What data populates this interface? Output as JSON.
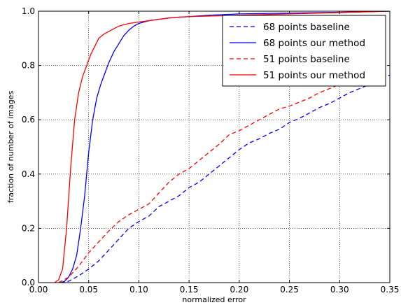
{
  "chart_data": {
    "type": "line",
    "title": "",
    "xlabel": "normalized error",
    "ylabel": "fraction of number of images",
    "xlim": [
      0.0,
      0.35
    ],
    "ylim": [
      0.0,
      1.0
    ],
    "x_ticks": [
      "0.00",
      "0.05",
      "0.10",
      "0.15",
      "0.20",
      "0.25",
      "0.30",
      "0.35"
    ],
    "y_ticks": [
      "0.0",
      "0.2",
      "0.4",
      "0.6",
      "0.8",
      "1.0"
    ],
    "grid": true,
    "legend_position": "top-right",
    "series": [
      {
        "name": "68 points baseline",
        "color": "#0000ff",
        "dash": "dashed",
        "x": [
          0.022,
          0.03,
          0.04,
          0.05,
          0.06,
          0.07,
          0.08,
          0.09,
          0.1,
          0.11,
          0.12,
          0.13,
          0.14,
          0.15,
          0.16,
          0.17,
          0.18,
          0.19,
          0.2,
          0.21,
          0.22,
          0.23,
          0.24,
          0.25,
          0.26,
          0.27,
          0.28,
          0.29,
          0.3,
          0.31,
          0.32,
          0.33,
          0.34,
          0.35
        ],
        "y": [
          0.0,
          0.005,
          0.025,
          0.05,
          0.08,
          0.12,
          0.16,
          0.2,
          0.225,
          0.245,
          0.28,
          0.3,
          0.32,
          0.35,
          0.37,
          0.4,
          0.43,
          0.46,
          0.49,
          0.515,
          0.53,
          0.55,
          0.565,
          0.59,
          0.605,
          0.625,
          0.645,
          0.66,
          0.68,
          0.7,
          0.715,
          0.73,
          0.745,
          0.765
        ]
      },
      {
        "name": "68 points our method",
        "color": "#0000ff",
        "dash": "solid",
        "x": [
          0.022,
          0.026,
          0.03,
          0.034,
          0.038,
          0.042,
          0.046,
          0.05,
          0.054,
          0.058,
          0.062,
          0.066,
          0.07,
          0.075,
          0.08,
          0.085,
          0.09,
          0.095,
          0.1,
          0.11,
          0.12,
          0.13,
          0.14,
          0.15,
          0.17,
          0.2,
          0.25,
          0.3,
          0.35
        ],
        "y": [
          0.0,
          0.005,
          0.02,
          0.05,
          0.1,
          0.2,
          0.32,
          0.48,
          0.6,
          0.68,
          0.73,
          0.77,
          0.81,
          0.85,
          0.88,
          0.91,
          0.93,
          0.945,
          0.955,
          0.965,
          0.97,
          0.975,
          0.978,
          0.98,
          0.985,
          0.99,
          0.993,
          0.996,
          1.0
        ]
      },
      {
        "name": "51 points baseline",
        "color": "#ff0000",
        "dash": "dashed",
        "x": [
          0.02,
          0.03,
          0.04,
          0.05,
          0.06,
          0.07,
          0.08,
          0.09,
          0.1,
          0.11,
          0.12,
          0.13,
          0.14,
          0.15,
          0.16,
          0.17,
          0.18,
          0.19,
          0.2,
          0.21,
          0.22,
          0.23,
          0.24,
          0.25,
          0.26,
          0.27,
          0.28,
          0.29,
          0.3,
          0.31
        ],
        "y": [
          0.0,
          0.02,
          0.06,
          0.11,
          0.15,
          0.19,
          0.225,
          0.25,
          0.27,
          0.29,
          0.33,
          0.37,
          0.4,
          0.42,
          0.45,
          0.48,
          0.51,
          0.545,
          0.56,
          0.58,
          0.6,
          0.62,
          0.64,
          0.65,
          0.665,
          0.68,
          0.7,
          0.715,
          0.73,
          0.74
        ]
      },
      {
        "name": "51 points our method",
        "color": "#ff0000",
        "dash": "solid",
        "x": [
          0.016,
          0.02,
          0.024,
          0.028,
          0.032,
          0.036,
          0.04,
          0.044,
          0.048,
          0.052,
          0.056,
          0.06,
          0.065,
          0.07,
          0.075,
          0.08,
          0.09,
          0.1,
          0.11,
          0.12,
          0.13,
          0.14,
          0.15,
          0.17,
          0.2,
          0.25,
          0.3,
          0.35
        ],
        "y": [
          0.0,
          0.01,
          0.05,
          0.2,
          0.42,
          0.6,
          0.7,
          0.76,
          0.8,
          0.84,
          0.87,
          0.9,
          0.915,
          0.925,
          0.935,
          0.945,
          0.955,
          0.96,
          0.965,
          0.97,
          0.975,
          0.978,
          0.98,
          0.982,
          0.985,
          0.99,
          0.995,
          1.0
        ]
      }
    ]
  }
}
